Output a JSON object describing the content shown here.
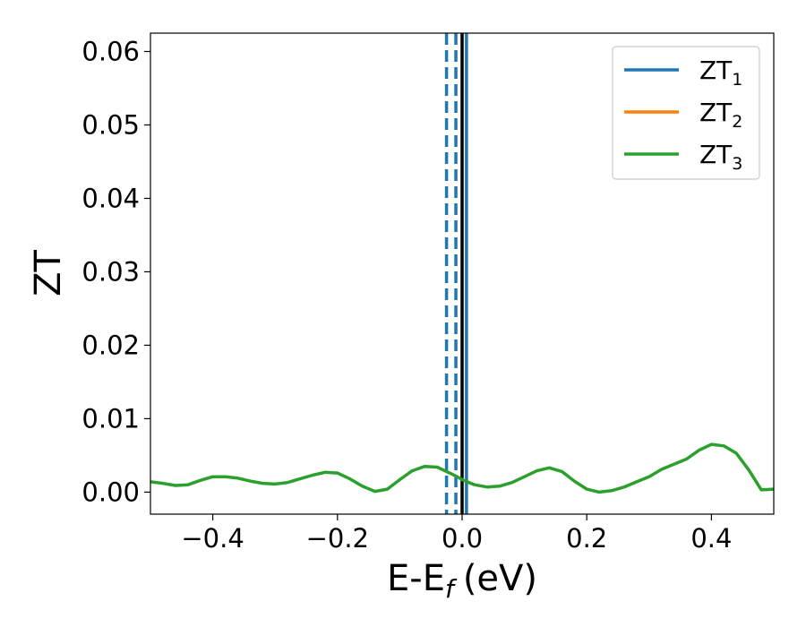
{
  "chart_data": {
    "type": "line",
    "xlabel": "E-E",
    "xlabel_sub": "f",
    "xlabel_unit": "(eV)",
    "ylabel": "ZT",
    "xlim": [
      -0.5,
      0.5
    ],
    "ylim": [
      -0.003,
      0.0625
    ],
    "xticks": [
      -0.4,
      -0.2,
      0.0,
      0.2,
      0.4
    ],
    "xtick_labels": [
      "−0.4",
      "−0.2",
      "0.0",
      "0.2",
      "0.4"
    ],
    "yticks": [
      0.0,
      0.01,
      0.02,
      0.03,
      0.04,
      0.05,
      0.06
    ],
    "ytick_labels": [
      "0.00",
      "0.01",
      "0.02",
      "0.03",
      "0.04",
      "0.05",
      "0.06"
    ],
    "grid": false,
    "legend_position": "top-right",
    "series": [
      {
        "name": "ZT",
        "sub": "1",
        "color": "#1f77b4",
        "x": [],
        "y": []
      },
      {
        "name": "ZT",
        "sub": "2",
        "color": "#ff7f0e",
        "x": [],
        "y": []
      },
      {
        "name": "ZT",
        "sub": "3",
        "color": "#2ca02c",
        "x": [
          -0.5,
          -0.48,
          -0.46,
          -0.44,
          -0.42,
          -0.4,
          -0.38,
          -0.36,
          -0.34,
          -0.32,
          -0.3,
          -0.28,
          -0.26,
          -0.24,
          -0.22,
          -0.2,
          -0.18,
          -0.16,
          -0.14,
          -0.12,
          -0.1,
          -0.08,
          -0.06,
          -0.04,
          -0.03,
          -0.02,
          -0.01,
          0.0,
          0.02,
          0.04,
          0.06,
          0.08,
          0.1,
          0.12,
          0.14,
          0.16,
          0.18,
          0.2,
          0.22,
          0.24,
          0.26,
          0.28,
          0.3,
          0.32,
          0.34,
          0.36,
          0.38,
          0.4,
          0.42,
          0.44,
          0.46,
          0.48,
          0.5
        ],
        "y": [
          0.0014,
          0.0012,
          0.0009,
          0.001,
          0.0016,
          0.0021,
          0.0021,
          0.0019,
          0.0015,
          0.0012,
          0.0011,
          0.0013,
          0.0018,
          0.0023,
          0.0027,
          0.0026,
          0.0018,
          0.0008,
          0.0001,
          0.0004,
          0.0017,
          0.0029,
          0.0035,
          0.0034,
          0.003,
          0.0026,
          0.0022,
          0.0017,
          0.001,
          0.0007,
          0.0008,
          0.0013,
          0.0021,
          0.0029,
          0.0033,
          0.0028,
          0.0015,
          0.0004,
          0.0,
          0.0002,
          0.0007,
          0.0014,
          0.0021,
          0.0031,
          0.0038,
          0.0045,
          0.0057,
          0.0065,
          0.0063,
          0.0053,
          0.003,
          0.0003,
          0.0004
        ]
      }
    ],
    "vlines": [
      {
        "x": -0.025,
        "style": "dashed",
        "color": "#1f77b4"
      },
      {
        "x": -0.01,
        "style": "dashed",
        "color": "#1f77b4"
      },
      {
        "x": 0.007,
        "style": "solid",
        "color": "#1f77b4"
      },
      {
        "x": 0.0,
        "style": "solid",
        "color": "#000000"
      }
    ]
  }
}
